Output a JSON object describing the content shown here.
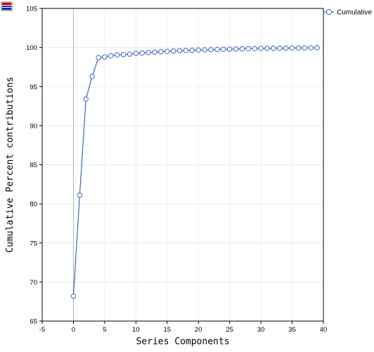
{
  "toolbar": {
    "menu_icon": "grid-menu-icon"
  },
  "colors": {
    "series": "#3c64c0",
    "grid": "#ececec",
    "zero_line": "#b4b4b4",
    "axis": "#000000",
    "menu_icon_red": "#c80000",
    "menu_icon_blue": "#1030a0"
  },
  "chart_data": {
    "type": "line",
    "title": "",
    "xlabel": "Series Components",
    "ylabel": "Cumulative Percent contributions",
    "xlim": [
      -5,
      40
    ],
    "ylim": [
      65,
      105
    ],
    "x_ticks": [
      -5,
      0,
      5,
      10,
      15,
      20,
      25,
      30,
      35,
      40
    ],
    "y_ticks": [
      65,
      70,
      75,
      80,
      85,
      90,
      95,
      100,
      105
    ],
    "grid": true,
    "legend_position": "top-right",
    "marker": "circle",
    "series": [
      {
        "name": "Cumulative",
        "x": [
          0,
          1,
          2,
          3,
          4,
          5,
          6,
          7,
          8,
          9,
          10,
          11,
          12,
          13,
          14,
          15,
          16,
          17,
          18,
          19,
          20,
          21,
          22,
          23,
          24,
          25,
          26,
          27,
          28,
          29,
          30,
          31,
          32,
          33,
          34,
          35,
          36,
          37,
          38,
          39
        ],
        "values": [
          68.2,
          81.1,
          93.4,
          96.3,
          98.7,
          98.8,
          98.95,
          99.05,
          99.1,
          99.15,
          99.25,
          99.3,
          99.35,
          99.4,
          99.45,
          99.5,
          99.55,
          99.6,
          99.62,
          99.65,
          99.68,
          99.7,
          99.72,
          99.75,
          99.77,
          99.79,
          99.81,
          99.83,
          99.85,
          99.86,
          99.88,
          99.89,
          99.9,
          99.91,
          99.92,
          99.93,
          99.94,
          99.95,
          99.96,
          99.98
        ]
      }
    ]
  }
}
